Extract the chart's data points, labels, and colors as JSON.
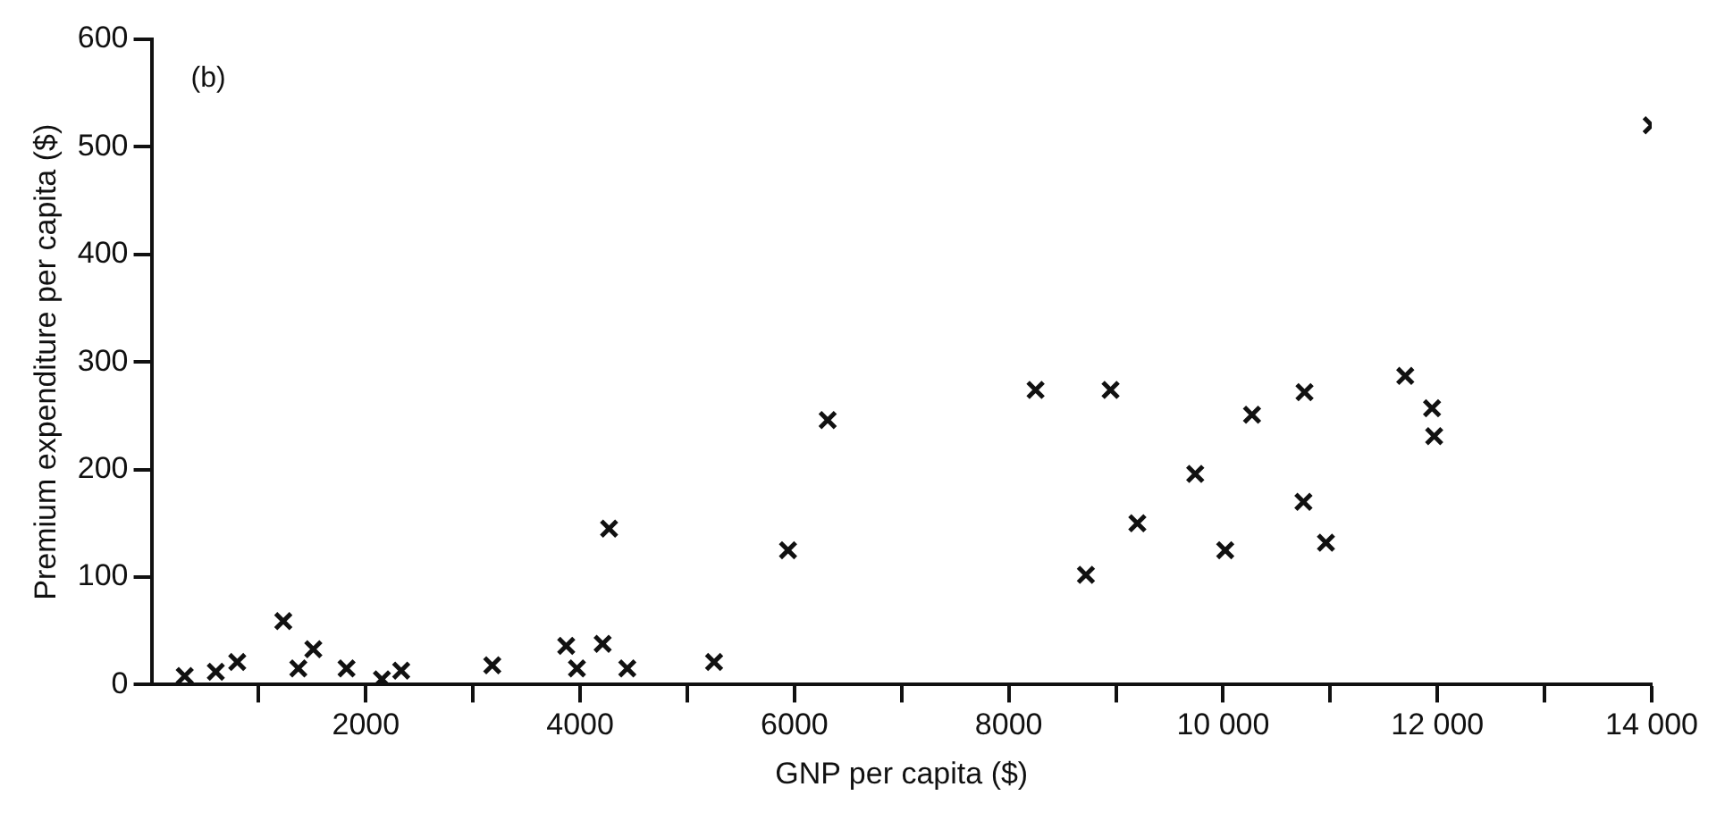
{
  "chart_data": {
    "type": "scatter",
    "xlabel": "GNP per capita ($)",
    "ylabel": "Premium expenditure per capita ($)",
    "annotations": [
      "(b)"
    ],
    "x": [
      310,
      600,
      800,
      1230,
      1370,
      1510,
      1820,
      2150,
      2330,
      3180,
      3870,
      3970,
      4210,
      4270,
      4440,
      5250,
      5940,
      6310,
      8250,
      8720,
      8950,
      9200,
      9740,
      10020,
      10270,
      10750,
      10760,
      10960,
      11700,
      11950,
      11970,
      14000
    ],
    "values": [
      8,
      12,
      21,
      59,
      15,
      33,
      15,
      5,
      13,
      18,
      36,
      15,
      38,
      145,
      15,
      21,
      125,
      246,
      274,
      102,
      274,
      150,
      196,
      125,
      251,
      170,
      272,
      132,
      287,
      257,
      231,
      520
    ],
    "color": "#111111",
    "marker": "cross",
    "xlim": [
      0,
      14000
    ],
    "xticks": [
      {
        "value": 1000,
        "label": null
      },
      2000,
      {
        "value": 3000,
        "label": null
      },
      4000,
      {
        "value": 5000,
        "label": null
      },
      6000,
      {
        "value": 7000,
        "label": null
      },
      8000,
      {
        "value": 9000,
        "label": null
      },
      {
        "value": 10000,
        "label": "10 000"
      },
      {
        "value": 11000,
        "label": null
      },
      {
        "value": 12000,
        "label": "12 000"
      },
      {
        "value": 13000,
        "label": null
      },
      {
        "value": 14000,
        "label": "14 000"
      }
    ],
    "ylim": [
      0,
      600
    ],
    "yticks": [
      0,
      100,
      200,
      300,
      400,
      500,
      600
    ],
    "grid": false,
    "legend": false
  }
}
